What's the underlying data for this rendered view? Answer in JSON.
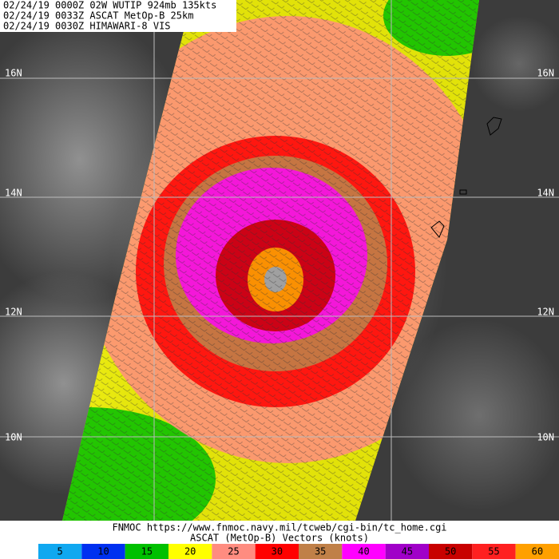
{
  "header": {
    "lines": [
      "02/24/19 0000Z  02W WUTIP 924mb 135kts",
      "02/24/19 0033Z  ASCAT MetOp-B 25km",
      "02/24/19 0030Z  HIMAWARI-8 VIS"
    ]
  },
  "lat_labels": [
    "16N",
    "14N",
    "12N",
    "10N"
  ],
  "footer": {
    "source": "FNMOC https://www.fnmoc.navy.mil/tcweb/cgi-bin/tc_home.cgi",
    "caption": "ASCAT (MetOp-B) Vectors (knots)"
  },
  "legend": [
    {
      "value": 5,
      "color": "#10a8f0"
    },
    {
      "value": 10,
      "color": "#0030f0"
    },
    {
      "value": 15,
      "color": "#00c000"
    },
    {
      "value": 20,
      "color": "#ffff00"
    },
    {
      "value": 25,
      "color": "#ff8c80"
    },
    {
      "value": 30,
      "color": "#ff0000"
    },
    {
      "value": 35,
      "color": "#c08048"
    },
    {
      "value": 40,
      "color": "#ff00ff"
    },
    {
      "value": 45,
      "color": "#a000c8"
    },
    {
      "value": 50,
      "color": "#c80000"
    },
    {
      "value": 55,
      "color": "#ff2020"
    },
    {
      "value": 60,
      "color": "#ffa000"
    }
  ]
}
